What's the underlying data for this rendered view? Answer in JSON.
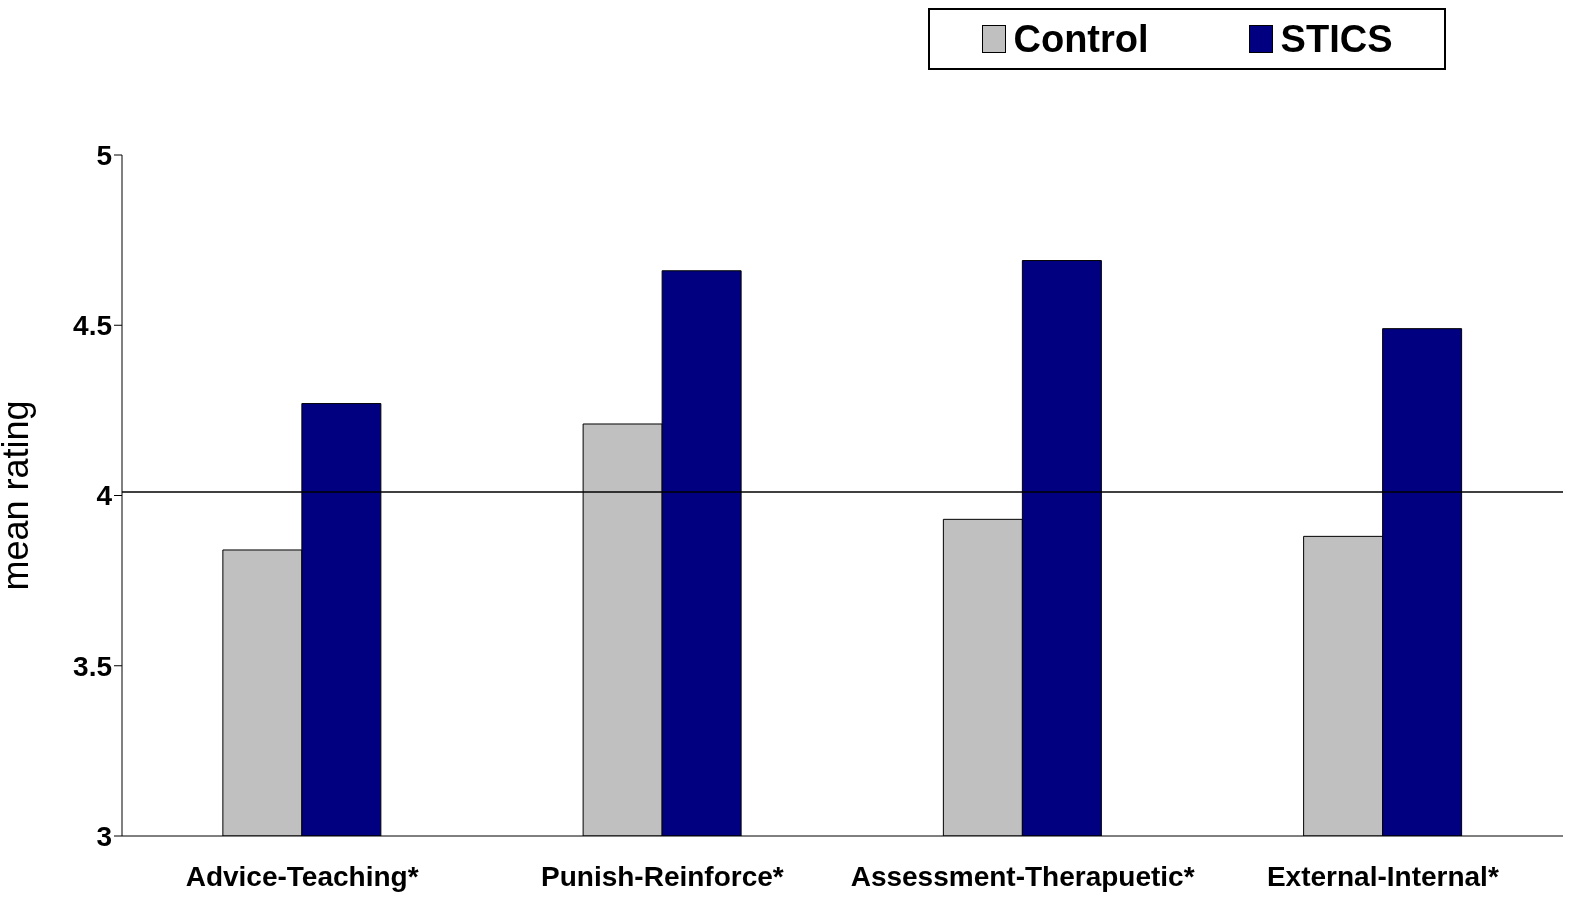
{
  "chart_data": {
    "type": "bar",
    "ylabel": "mean rating",
    "categories": [
      "Advice-Teaching*",
      "Punish-Reinforce*",
      "Assessment-Therapuetic*",
      "External-Internal*"
    ],
    "series": [
      {
        "name": "Control",
        "color": "#c0c0c0",
        "values": [
          3.84,
          4.21,
          3.93,
          3.88
        ]
      },
      {
        "name": "STICS",
        "color": "#000080",
        "values": [
          4.27,
          4.66,
          4.69,
          4.49
        ]
      }
    ],
    "ylim": [
      3,
      5
    ],
    "yticks": [
      3,
      3.5,
      4,
      4.5,
      5
    ],
    "ref_lines": [
      {
        "axis": "y",
        "value": 4.01,
        "color": "#000000"
      }
    ],
    "grid": false,
    "legend": "top right"
  }
}
